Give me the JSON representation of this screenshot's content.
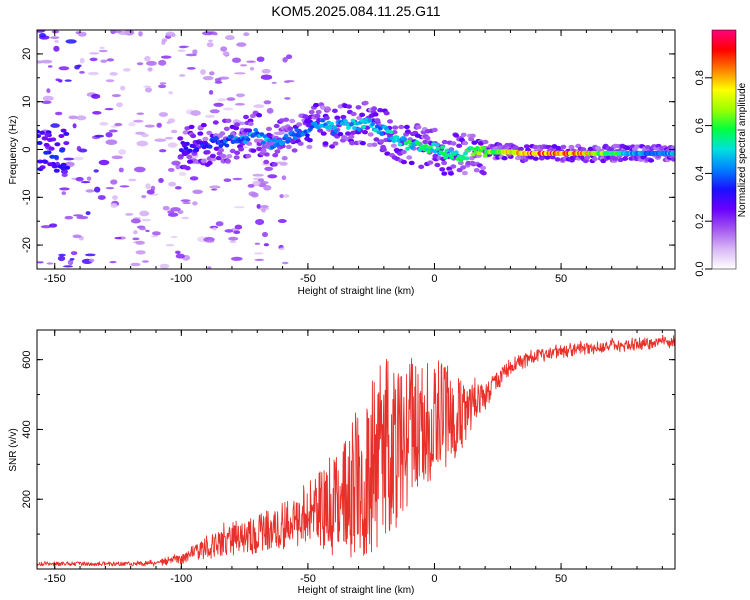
{
  "title": "KOM5.2025.084.11.25.G11",
  "chart_data": [
    {
      "type": "heatmap",
      "name": "spectrogram",
      "xlabel": "Height of straight line (km)",
      "ylabel": "Frequency (Hz)",
      "xlim": [
        -157,
        95
      ],
      "ylim": [
        -25,
        25
      ],
      "xticks": [
        -150,
        -100,
        -50,
        0,
        50
      ],
      "xtick_labels": [
        "-150",
        "-100",
        "-50",
        "0",
        "50"
      ],
      "yticks": [
        -20,
        -10,
        0,
        10,
        20
      ],
      "ytick_labels": [
        "-20",
        "-10",
        "0",
        "10",
        "20"
      ],
      "colorbar": {
        "label": "Normalized spectral amplitude",
        "range": [
          0,
          1
        ],
        "ticks": [
          0,
          0.2,
          0.4,
          0.6,
          0.8
        ],
        "tick_labels": [
          "0.0",
          "0.2",
          "0.4",
          "0.6",
          "0.8"
        ],
        "colormap": [
          "#ffffff",
          "#d9b8f5",
          "#a356ef",
          "#6a00ff",
          "#1a10ff",
          "#0080ff",
          "#00e0e0",
          "#00ff40",
          "#9cff00",
          "#ffff00",
          "#ff8000",
          "#ff0000",
          "#ff0080"
        ]
      },
      "ridge": [
        {
          "x": -95,
          "y": 0.5,
          "a": 0.3
        },
        {
          "x": -90,
          "y": 1.0,
          "a": 0.35
        },
        {
          "x": -85,
          "y": 1.5,
          "a": 0.35
        },
        {
          "x": -80,
          "y": 2.0,
          "a": 0.4
        },
        {
          "x": -75,
          "y": 2.5,
          "a": 0.45
        },
        {
          "x": -70,
          "y": 3.5,
          "a": 0.45
        },
        {
          "x": -65,
          "y": 1.0,
          "a": 0.45
        },
        {
          "x": -60,
          "y": 2.0,
          "a": 0.45
        },
        {
          "x": -55,
          "y": 3.0,
          "a": 0.45
        },
        {
          "x": -50,
          "y": 4.0,
          "a": 0.4
        },
        {
          "x": -45,
          "y": 5.5,
          "a": 0.45
        },
        {
          "x": -40,
          "y": 4.5,
          "a": 0.45
        },
        {
          "x": -35,
          "y": 5.5,
          "a": 0.45
        },
        {
          "x": -30,
          "y": 5.0,
          "a": 0.5
        },
        {
          "x": -25,
          "y": 5.5,
          "a": 0.5
        },
        {
          "x": -20,
          "y": 4.0,
          "a": 0.45
        },
        {
          "x": -15,
          "y": 2.0,
          "a": 0.5
        },
        {
          "x": -10,
          "y": 1.0,
          "a": 0.55
        },
        {
          "x": -5,
          "y": 0.5,
          "a": 0.55
        },
        {
          "x": 0,
          "y": 0.5,
          "a": 0.55
        },
        {
          "x": 5,
          "y": -1.0,
          "a": 0.55
        },
        {
          "x": 10,
          "y": -1.5,
          "a": 0.55
        },
        {
          "x": 15,
          "y": -0.5,
          "a": 0.6
        },
        {
          "x": 20,
          "y": -0.5,
          "a": 0.65
        },
        {
          "x": 25,
          "y": -0.5,
          "a": 0.7
        },
        {
          "x": 30,
          "y": -0.5,
          "a": 0.75
        },
        {
          "x": 35,
          "y": -0.8,
          "a": 0.85
        },
        {
          "x": 40,
          "y": -0.8,
          "a": 0.9
        },
        {
          "x": 45,
          "y": -0.8,
          "a": 0.9
        },
        {
          "x": 50,
          "y": -0.8,
          "a": 0.9
        },
        {
          "x": 55,
          "y": -0.8,
          "a": 0.85
        },
        {
          "x": 60,
          "y": -0.8,
          "a": 0.8
        },
        {
          "x": 65,
          "y": -0.8,
          "a": 0.7
        },
        {
          "x": 70,
          "y": -0.8,
          "a": 0.6
        },
        {
          "x": 75,
          "y": -0.8,
          "a": 0.5
        },
        {
          "x": 80,
          "y": -0.8,
          "a": 0.45
        },
        {
          "x": 85,
          "y": -0.8,
          "a": 0.45
        },
        {
          "x": 90,
          "y": -0.8,
          "a": 0.45
        },
        {
          "x": 95,
          "y": -0.8,
          "a": 0.45
        }
      ]
    },
    {
      "type": "line",
      "name": "snr",
      "xlabel": "Height of straight line (km)",
      "ylabel": "SNR (v/v)",
      "xlim": [
        -157,
        95
      ],
      "ylim": [
        0,
        685
      ],
      "xticks": [
        -150,
        -100,
        -50,
        0,
        50
      ],
      "xtick_labels": [
        "-150",
        "-100",
        "-50",
        "0",
        "50"
      ],
      "yticks": [
        200,
        400,
        600
      ],
      "ytick_labels": [
        "200",
        "400",
        "600"
      ],
      "color": "#e8302a",
      "series": [
        {
          "name": "SNR",
          "x": [
            -157,
            -150,
            -140,
            -130,
            -120,
            -110,
            -100,
            -95,
            -90,
            -85,
            -80,
            -75,
            -70,
            -65,
            -60,
            -55,
            -50,
            -45,
            -40,
            -35,
            -30,
            -25,
            -20,
            -15,
            -10,
            -5,
            0,
            5,
            10,
            15,
            20,
            25,
            30,
            40,
            50,
            60,
            70,
            80,
            90,
            95
          ],
          "y": [
            15,
            15,
            15,
            15,
            15,
            18,
            30,
            45,
            60,
            80,
            90,
            95,
            100,
            110,
            125,
            140,
            155,
            170,
            190,
            220,
            260,
            300,
            340,
            370,
            390,
            410,
            430,
            440,
            450,
            470,
            500,
            540,
            580,
            610,
            625,
            635,
            640,
            645,
            650,
            650
          ],
          "spread": [
            0,
            0,
            0,
            0,
            0,
            5,
            15,
            25,
            35,
            45,
            50,
            50,
            55,
            60,
            70,
            80,
            90,
            110,
            150,
            190,
            230,
            260,
            260,
            250,
            220,
            190,
            170,
            150,
            120,
            80,
            40,
            25,
            20,
            18,
            16,
            16,
            16,
            16,
            16,
            16
          ]
        }
      ]
    }
  ]
}
